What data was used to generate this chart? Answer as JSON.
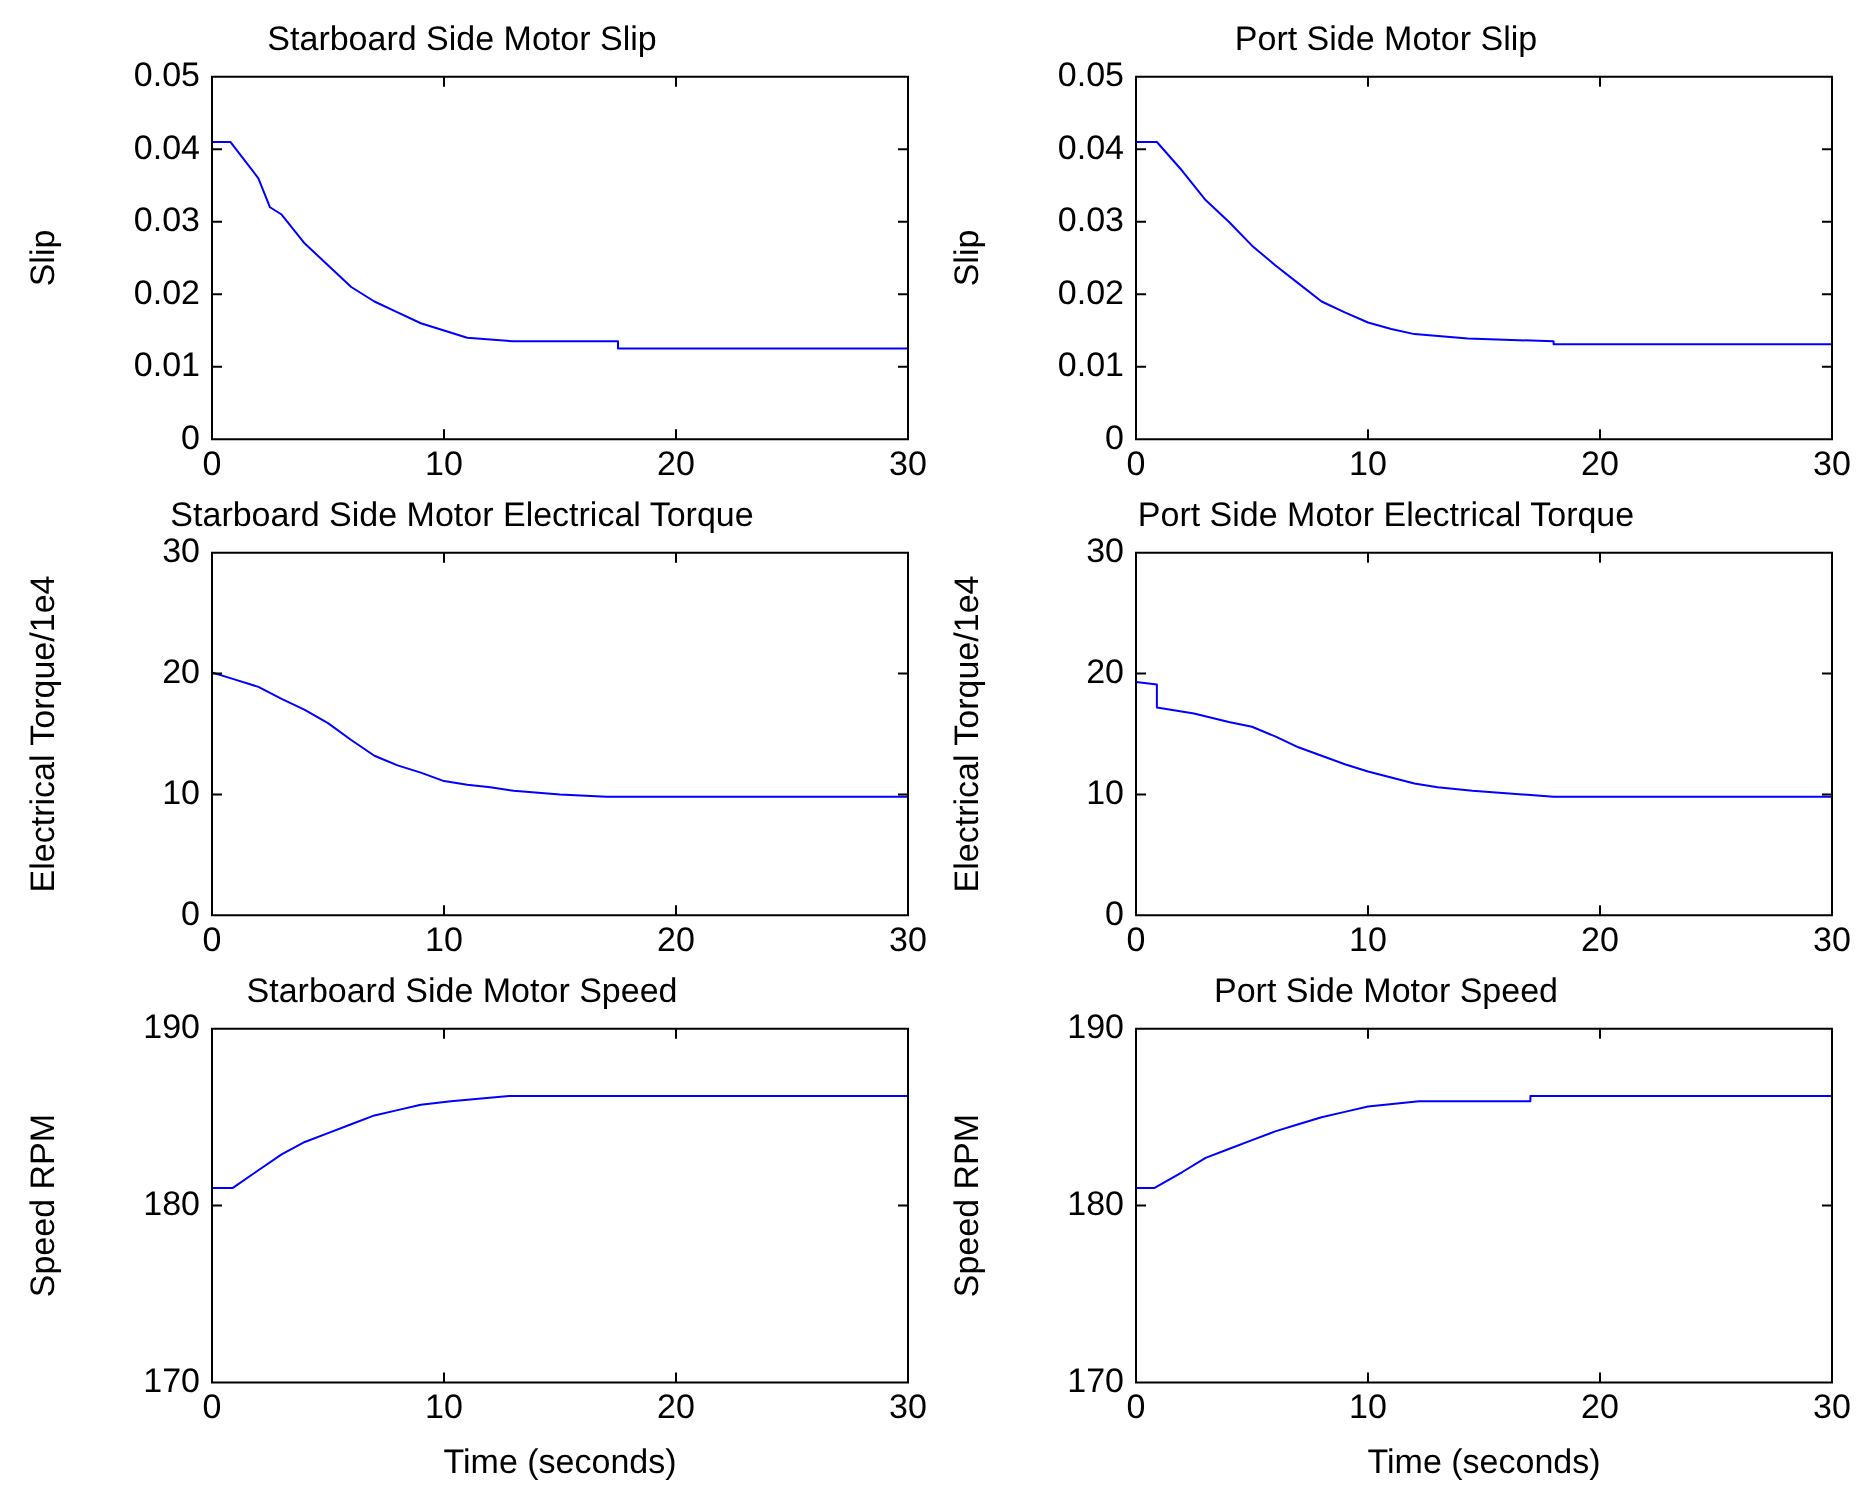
{
  "chart_data": [
    {
      "type": "line",
      "title": "Starboard Side Motor Slip",
      "ylabel": "Slip",
      "xlim": [
        0,
        30
      ],
      "xticks": [
        0,
        10,
        20,
        30
      ],
      "ylim": [
        0,
        0.05
      ],
      "yticks": [
        0,
        0.01,
        0.02,
        0.03,
        0.04,
        0.05
      ],
      "grid": false,
      "legend": false,
      "marker": "none",
      "line_style": "solid",
      "series": [
        {
          "color": "#0000ff",
          "x": [
            0,
            0.8,
            2,
            2.5,
            3,
            4,
            5,
            6,
            7,
            8,
            9,
            10,
            11,
            13,
            17.5,
            17.5,
            30
          ],
          "values": [
            0.041,
            0.041,
            0.036,
            0.032,
            0.031,
            0.027,
            0.024,
            0.021,
            0.019,
            0.0175,
            0.016,
            0.015,
            0.014,
            0.0135,
            0.0135,
            0.0125,
            0.0125
          ]
        }
      ]
    },
    {
      "type": "line",
      "title": "Port Side Motor Slip",
      "ylabel": "Slip",
      "xlim": [
        0,
        30
      ],
      "xticks": [
        0,
        10,
        20,
        30
      ],
      "ylim": [
        0,
        0.05
      ],
      "yticks": [
        0,
        0.01,
        0.02,
        0.03,
        0.04,
        0.05
      ],
      "grid": false,
      "legend": false,
      "marker": "none",
      "line_style": "solid",
      "series": [
        {
          "color": "#0000ff",
          "x": [
            0,
            0.9,
            2,
            3,
            4,
            5,
            6,
            7,
            8,
            9,
            10,
            11,
            12,
            14.3,
            18,
            18,
            30
          ],
          "values": [
            0.041,
            0.041,
            0.037,
            0.033,
            0.03,
            0.0267,
            0.024,
            0.0215,
            0.019,
            0.0175,
            0.0161,
            0.0152,
            0.0145,
            0.0139,
            0.0135,
            0.0131,
            0.0131
          ]
        }
      ]
    },
    {
      "type": "line",
      "title": "Starboard Side Motor Electrical Torque",
      "ylabel": "Electrical Torque/1e4",
      "xlim": [
        0,
        30
      ],
      "xticks": [
        0,
        10,
        20,
        30
      ],
      "ylim": [
        0,
        30
      ],
      "yticks": [
        0,
        10,
        20,
        30
      ],
      "grid": false,
      "legend": false,
      "marker": "none",
      "line_style": "solid",
      "series": [
        {
          "color": "#0000ff",
          "x": [
            0,
            0,
            1,
            2,
            3,
            4,
            5,
            6,
            7,
            8,
            9,
            10,
            11,
            12,
            13,
            15,
            17,
            30
          ],
          "values": [
            0,
            20.1,
            19.5,
            18.9,
            17.9,
            17,
            15.9,
            14.5,
            13.2,
            12.4,
            11.8,
            11.1,
            10.8,
            10.6,
            10.3,
            10,
            9.8,
            9.8
          ]
        }
      ]
    },
    {
      "type": "line",
      "title": "Port Side Motor Electrical Torque",
      "ylabel": "Electrical Torque/1e4",
      "xlim": [
        0,
        30
      ],
      "xticks": [
        0,
        10,
        20,
        30
      ],
      "ylim": [
        0,
        30
      ],
      "yticks": [
        0,
        10,
        20,
        30
      ],
      "grid": false,
      "legend": false,
      "marker": "none",
      "line_style": "solid",
      "series": [
        {
          "color": "#0000ff",
          "x": [
            0,
            0,
            0.9,
            0.9,
            2.5,
            4,
            5,
            6,
            7,
            8,
            9,
            10,
            11,
            12,
            13,
            14.5,
            18,
            30
          ],
          "values": [
            0,
            19.3,
            19.1,
            17.2,
            16.7,
            16,
            15.6,
            14.8,
            13.9,
            13.2,
            12.5,
            11.9,
            11.4,
            10.9,
            10.6,
            10.3,
            9.8,
            9.8
          ]
        }
      ]
    },
    {
      "type": "line",
      "title": "Starboard Side Motor Speed",
      "ylabel": "Speed RPM",
      "xlabel": "Time (seconds)",
      "xlim": [
        0,
        30
      ],
      "xticks": [
        0,
        10,
        20,
        30
      ],
      "ylim": [
        170,
        190
      ],
      "yticks": [
        170,
        180,
        190
      ],
      "grid": false,
      "legend": false,
      "marker": "none",
      "line_style": "solid",
      "series": [
        {
          "color": "#0000ff",
          "x": [
            0,
            0.9,
            2,
            3,
            4,
            5,
            6,
            7,
            8,
            9,
            10.3,
            12.8,
            30
          ],
          "values": [
            181,
            181,
            182,
            182.9,
            183.6,
            184.1,
            184.6,
            185.1,
            185.4,
            185.7,
            185.9,
            186.2,
            186.2
          ]
        }
      ]
    },
    {
      "type": "line",
      "title": "Port Side Motor Speed",
      "ylabel": "Speed RPM",
      "xlabel": "Time (seconds)",
      "xlim": [
        0,
        30
      ],
      "xticks": [
        0,
        10,
        20,
        30
      ],
      "ylim": [
        170,
        190
      ],
      "yticks": [
        170,
        180,
        190
      ],
      "grid": false,
      "legend": false,
      "marker": "none",
      "line_style": "solid",
      "series": [
        {
          "color": "#0000ff",
          "x": [
            0,
            0.8,
            2,
            3,
            4,
            5,
            6,
            7,
            8,
            9,
            10,
            12.2,
            17,
            17,
            30
          ],
          "values": [
            181,
            181,
            181.9,
            182.7,
            183.2,
            183.7,
            184.2,
            184.6,
            185,
            185.3,
            185.6,
            185.9,
            185.9,
            186.2,
            186.2
          ]
        }
      ]
    }
  ]
}
